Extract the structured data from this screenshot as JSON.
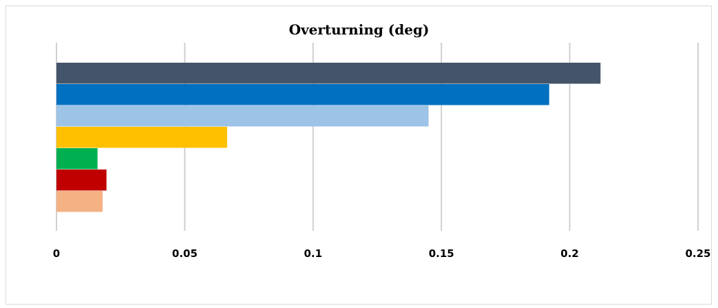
{
  "chart_data": {
    "type": "bar",
    "orientation": "horizontal",
    "title": "Overturning (deg)",
    "xlabel": "",
    "ylabel": "",
    "xlim": [
      0,
      0.25
    ],
    "xticks": [
      "0",
      "0.05",
      "0.1",
      "0.15",
      "0.2",
      "0.25"
    ],
    "grid": true,
    "legend": "none",
    "bars": [
      {
        "value": 0.212,
        "color": "#44546A"
      },
      {
        "value": 0.192,
        "color": "#0070C0"
      },
      {
        "value": 0.145,
        "color": "#9DC3E6"
      },
      {
        "value": 0.0665,
        "color": "#FFC000"
      },
      {
        "value": 0.016,
        "color": "#00B050"
      },
      {
        "value": 0.0195,
        "color": "#C00000"
      },
      {
        "value": 0.018,
        "color": "#F4B183"
      }
    ]
  }
}
